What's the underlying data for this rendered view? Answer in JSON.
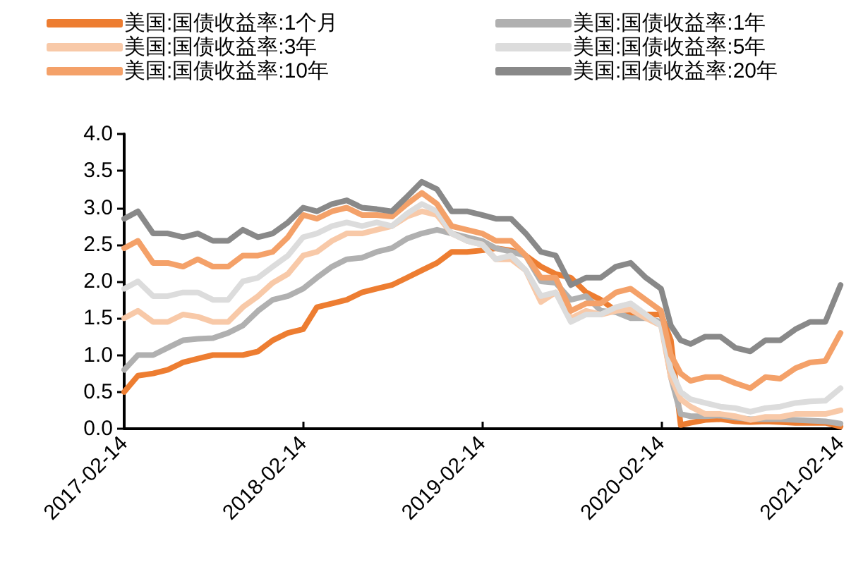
{
  "chart_data": {
    "type": "line",
    "x": [
      "2017-02-14",
      "2017-03-14",
      "2017-04-14",
      "2017-05-14",
      "2017-06-14",
      "2017-07-14",
      "2017-08-14",
      "2017-09-14",
      "2017-10-14",
      "2017-11-14",
      "2017-12-14",
      "2018-01-14",
      "2018-02-14",
      "2018-03-14",
      "2018-04-14",
      "2018-05-14",
      "2018-06-14",
      "2018-07-14",
      "2018-08-14",
      "2018-09-14",
      "2018-10-14",
      "2018-11-14",
      "2018-12-14",
      "2019-01-14",
      "2019-02-14",
      "2019-03-14",
      "2019-04-14",
      "2019-05-14",
      "2019-06-14",
      "2019-07-14",
      "2019-08-14",
      "2019-09-14",
      "2019-10-14",
      "2019-11-14",
      "2019-12-14",
      "2020-01-14",
      "2020-02-14",
      "2020-03-05",
      "2020-03-25",
      "2020-04-14",
      "2020-05-14",
      "2020-06-14",
      "2020-07-14",
      "2020-08-14",
      "2020-09-14",
      "2020-10-14",
      "2020-11-14",
      "2020-12-14",
      "2021-01-14",
      "2021-02-14"
    ],
    "series": [
      {
        "name": "美国:国债收益率:1个月",
        "color": "#ed7d31",
        "values": [
          0.5,
          0.72,
          0.75,
          0.8,
          0.9,
          0.95,
          1.0,
          1.0,
          1.0,
          1.05,
          1.2,
          1.3,
          1.35,
          1.65,
          1.7,
          1.75,
          1.85,
          1.9,
          1.95,
          2.05,
          2.15,
          2.25,
          2.4,
          2.4,
          2.42,
          2.45,
          2.42,
          2.35,
          2.2,
          2.1,
          2.05,
          1.85,
          1.75,
          1.6,
          1.55,
          1.55,
          1.55,
          1.2,
          0.05,
          0.08,
          0.12,
          0.13,
          0.1,
          0.09,
          0.1,
          0.09,
          0.08,
          0.08,
          0.08,
          0.03
        ]
      },
      {
        "name": "美国:国债收益率:1年",
        "color": "#b0b0b0",
        "values": [
          0.8,
          1.0,
          1.0,
          1.1,
          1.2,
          1.22,
          1.23,
          1.3,
          1.4,
          1.6,
          1.75,
          1.8,
          1.9,
          2.05,
          2.2,
          2.3,
          2.32,
          2.4,
          2.45,
          2.58,
          2.65,
          2.7,
          2.65,
          2.6,
          2.55,
          2.45,
          2.4,
          2.35,
          2.0,
          1.98,
          1.75,
          1.8,
          1.6,
          1.58,
          1.5,
          1.5,
          1.45,
          0.7,
          0.2,
          0.17,
          0.17,
          0.18,
          0.15,
          0.13,
          0.13,
          0.13,
          0.12,
          0.11,
          0.1,
          0.07
        ]
      },
      {
        "name": "美国:国债收益率:3年",
        "color": "#f8c9a8",
        "values": [
          1.5,
          1.6,
          1.45,
          1.45,
          1.55,
          1.52,
          1.45,
          1.45,
          1.65,
          1.8,
          1.98,
          2.1,
          2.35,
          2.4,
          2.55,
          2.65,
          2.65,
          2.7,
          2.75,
          2.88,
          2.95,
          2.9,
          2.65,
          2.55,
          2.5,
          2.3,
          2.3,
          2.15,
          1.72,
          1.85,
          1.5,
          1.6,
          1.55,
          1.6,
          1.62,
          1.5,
          1.4,
          0.7,
          0.4,
          0.3,
          0.2,
          0.2,
          0.17,
          0.12,
          0.16,
          0.16,
          0.2,
          0.2,
          0.2,
          0.25
        ]
      },
      {
        "name": "美国:国债收益率:5年",
        "color": "#dcdcdc",
        "values": [
          1.9,
          2.0,
          1.8,
          1.8,
          1.85,
          1.85,
          1.75,
          1.75,
          2.0,
          2.05,
          2.2,
          2.35,
          2.6,
          2.65,
          2.75,
          2.8,
          2.75,
          2.8,
          2.75,
          2.92,
          3.05,
          2.95,
          2.65,
          2.55,
          2.5,
          2.3,
          2.35,
          2.15,
          1.8,
          1.85,
          1.45,
          1.55,
          1.55,
          1.65,
          1.7,
          1.55,
          1.4,
          0.8,
          0.5,
          0.4,
          0.35,
          0.3,
          0.28,
          0.23,
          0.28,
          0.3,
          0.35,
          0.37,
          0.38,
          0.55
        ]
      },
      {
        "name": "美国:国债收益率:10年",
        "color": "#f4a169",
        "values": [
          2.45,
          2.55,
          2.25,
          2.25,
          2.2,
          2.3,
          2.2,
          2.2,
          2.35,
          2.35,
          2.4,
          2.6,
          2.9,
          2.85,
          2.95,
          3.0,
          2.9,
          2.9,
          2.88,
          3.05,
          3.2,
          3.05,
          2.75,
          2.7,
          2.65,
          2.55,
          2.55,
          2.35,
          2.05,
          2.05,
          1.6,
          1.7,
          1.7,
          1.85,
          1.9,
          1.75,
          1.6,
          1.0,
          0.75,
          0.65,
          0.7,
          0.7,
          0.62,
          0.55,
          0.7,
          0.68,
          0.82,
          0.9,
          0.92,
          1.3
        ]
      },
      {
        "name": "美国:国债收益率:20年",
        "color": "#898989",
        "values": [
          2.85,
          2.95,
          2.65,
          2.65,
          2.6,
          2.65,
          2.55,
          2.55,
          2.7,
          2.6,
          2.65,
          2.8,
          3.0,
          2.95,
          3.05,
          3.1,
          3.0,
          2.98,
          2.95,
          3.15,
          3.35,
          3.25,
          2.95,
          2.95,
          2.9,
          2.85,
          2.85,
          2.65,
          2.4,
          2.35,
          1.95,
          2.05,
          2.05,
          2.2,
          2.25,
          2.05,
          1.9,
          1.4,
          1.2,
          1.15,
          1.25,
          1.25,
          1.1,
          1.05,
          1.2,
          1.2,
          1.35,
          1.45,
          1.45,
          1.95
        ]
      }
    ],
    "xlim": [
      "2017-02-14",
      "2021-02-14"
    ],
    "xticks": [
      "2017-02-14",
      "2018-02-14",
      "2019-02-14",
      "2020-02-14",
      "2021-02-14"
    ],
    "ylim": [
      0,
      4.0
    ],
    "yticks": [
      {
        "value": 0,
        "label": "0.0"
      },
      {
        "value": 0.5,
        "label": "0.5"
      },
      {
        "value": 1,
        "label": "1.0"
      },
      {
        "value": 1.5,
        "label": "1.5"
      },
      {
        "value": 2,
        "label": "2.0"
      },
      {
        "value": 2.5,
        "label": "2.5"
      },
      {
        "value": 3,
        "label": "3.0"
      },
      {
        "value": 3.5,
        "label": "3.5"
      },
      {
        "value": 4,
        "label": "4.0"
      }
    ],
    "grid": false,
    "legend": "top",
    "marker": "none",
    "line_style": "solid"
  }
}
